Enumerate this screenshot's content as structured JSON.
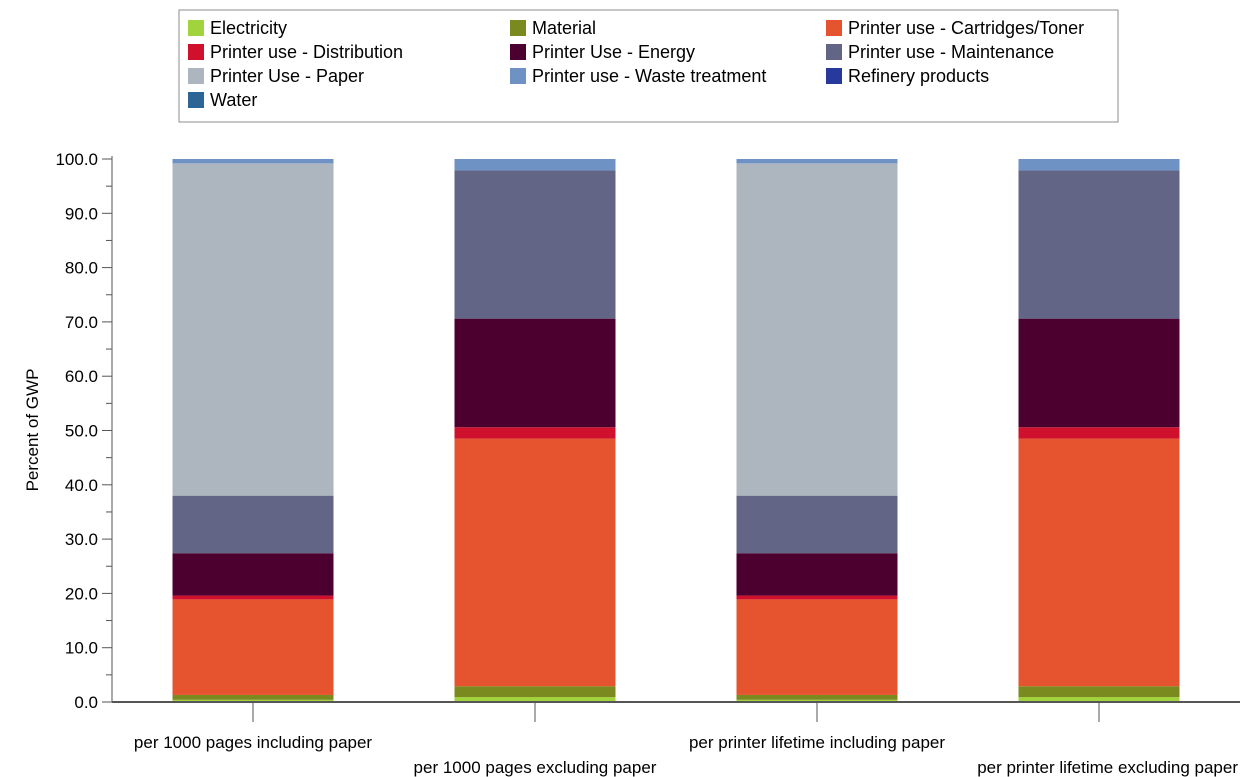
{
  "chart_data": {
    "type": "bar",
    "stacked": true,
    "ylabel": "Percent of GWP",
    "xlabel": "",
    "ylim": [
      0,
      100
    ],
    "yticks": [
      "0.0",
      "10.0",
      "20.0",
      "30.0",
      "40.0",
      "50.0",
      "60.0",
      "70.0",
      "80.0",
      "90.0",
      "100.0"
    ],
    "legend_position": "top",
    "categories": [
      "per 1000 pages including paper",
      "per 1000 pages excluding paper",
      "per printer lifetime including paper",
      "per printer lifetime excluding paper"
    ],
    "series": [
      {
        "name": "Electricity",
        "color": "#a0d33c",
        "values": [
          0.4,
          0.9,
          0.4,
          0.9
        ]
      },
      {
        "name": "Material",
        "color": "#7b8a1e",
        "values": [
          0.9,
          2.0,
          0.9,
          2.0
        ]
      },
      {
        "name": "Printer use - Cartridges/Toner",
        "color": "#e5532f",
        "values": [
          17.6,
          45.6,
          17.6,
          45.6
        ]
      },
      {
        "name": "Printer use - Distribution",
        "color": "#d0112d",
        "values": [
          0.7,
          2.1,
          0.7,
          2.1
        ]
      },
      {
        "name": "Printer Use - Energy",
        "color": "#4c0030",
        "values": [
          7.8,
          20.0,
          7.8,
          20.0
        ]
      },
      {
        "name": "Printer use - Maintenance",
        "color": "#626586",
        "values": [
          10.6,
          27.3,
          10.6,
          27.3
        ]
      },
      {
        "name": "Printer Use - Paper",
        "color": "#adb5bf",
        "values": [
          61.2,
          0.0,
          61.2,
          0.0
        ]
      },
      {
        "name": "Printer use - Waste treatment",
        "color": "#6e92c4",
        "values": [
          0.8,
          2.1,
          0.8,
          2.1
        ]
      },
      {
        "name": "Refinery products",
        "color": "#27399c",
        "values": [
          0.0,
          0.0,
          0.0,
          0.0
        ]
      },
      {
        "name": "Water",
        "color": "#2c6596",
        "values": [
          0.0,
          0.0,
          0.0,
          0.0
        ]
      }
    ]
  }
}
